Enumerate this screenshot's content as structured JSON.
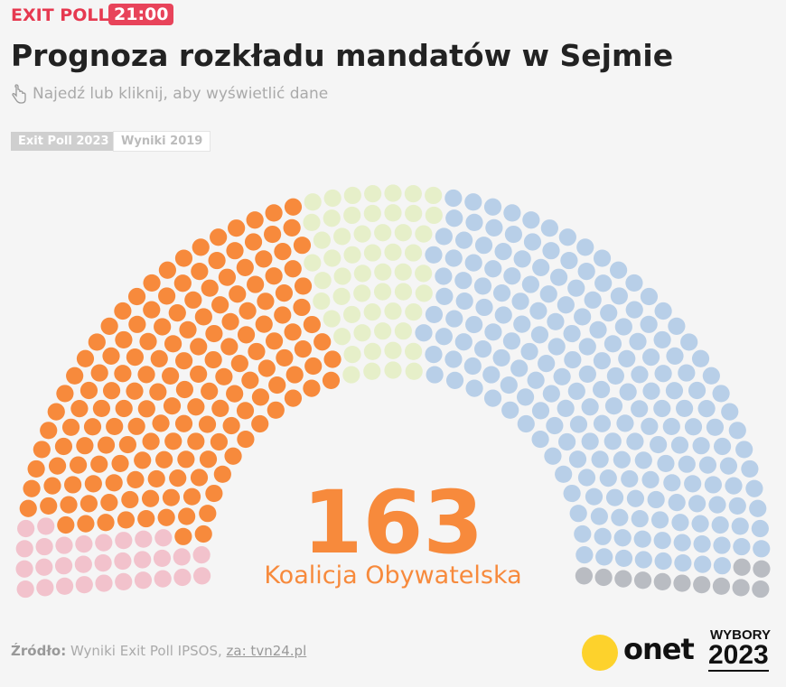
{
  "header": {
    "kicker": "EXIT POLL",
    "time": "21:00",
    "title": "Prognoza rozkładu mandatów w Sejmie",
    "subtitle": "Najedź lub kliknij, aby wyświetlić dane"
  },
  "tabs": [
    "Exit Poll 2023",
    "Wyniki 2019"
  ],
  "chart_data": {
    "type": "parliament",
    "series": [
      {
        "color": "#f2c2cc",
        "values": [
          30
        ]
      },
      {
        "name": "Koalicja Obywatelska",
        "color": "#f78a3c",
        "values": [
          163
        ]
      },
      {
        "color": "#e6efc9",
        "values": [
          55
        ]
      },
      {
        "color": "#b8cfe8",
        "values": [
          200
        ]
      },
      {
        "color": "#b9bcc2",
        "values": [
          12
        ]
      }
    ],
    "selected_series": 1
  },
  "footer": {
    "source_label": "Źródło:",
    "source": "Wyniki Exit Poll IPSOS,",
    "link": "za: tvn24.pl"
  },
  "logos": {
    "onet": "onet",
    "wybory": "WYBORY",
    "year": "2023"
  }
}
